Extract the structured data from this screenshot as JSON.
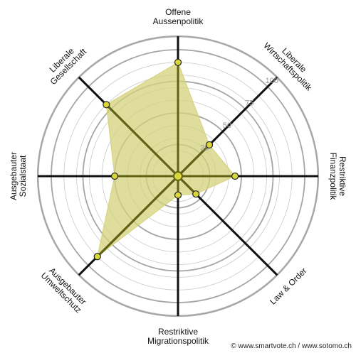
{
  "chart_data": {
    "type": "radar",
    "axes": [
      "Offene Aussenpolitik",
      "Liberale Wirtschaftspolitik",
      "Restriktive Finanzpolitik",
      "Law & Order",
      "Restriktive Migrationspolitik",
      "Ausgebauter Umweltschutz",
      "Ausgebauter Sozialstaat",
      "Liberale Gesellschaft"
    ],
    "values": [
      90,
      35,
      45,
      20,
      15,
      90,
      50,
      80
    ],
    "ticks": [
      25,
      50,
      75,
      100
    ],
    "range": [
      0,
      100
    ],
    "fill_color": "#d4d27a",
    "line_color": "#636316",
    "point_color": "#d8d63a",
    "grid_color": "#a6a6a6",
    "axis_color": "#111111"
  },
  "labels": [
    [
      "Offene",
      "Aussenpolitik"
    ],
    [
      "Liberale",
      "Wirtschaftspolitik"
    ],
    [
      "Restriktive",
      "Finanzpolitik"
    ],
    [
      "Law & Order"
    ],
    [
      "Restriktive",
      "Migrationspolitik"
    ],
    [
      "Ausgebauter",
      "Umweltschutz"
    ],
    [
      "Ausgebauter",
      "Sozialstaat"
    ],
    [
      "Liberale",
      "Gesellschaft"
    ]
  ],
  "footer": {
    "credit": "© www.smartvote.ch / www.sotomo.ch"
  }
}
